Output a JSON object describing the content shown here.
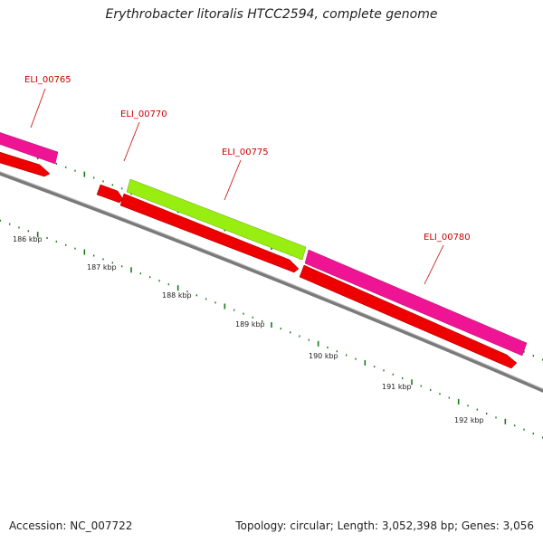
{
  "title": "Erythrobacter litoralis HTCC2594, complete genome",
  "footer": {
    "accession": "Accession: NC_007722",
    "summary": "Topology: circular; Length: 3,052,398 bp; Genes: 3,056"
  },
  "colors": {
    "backbone": "#7a7a7a",
    "cds": "#ee0000",
    "gene_pink": "#ee1493",
    "gene_green": "#99ee11",
    "ticks": "#1a7a1a",
    "gene_label": "#cc0000"
  },
  "scale_ticks": [
    "186 kbp",
    "187 kbp",
    "188 kbp",
    "189 kbp",
    "190 kbp",
    "191 kbp",
    "192 kbp"
  ],
  "genes": [
    "ELI_00765",
    "ELI_00770",
    "ELI_00775",
    "ELI_00780"
  ]
}
